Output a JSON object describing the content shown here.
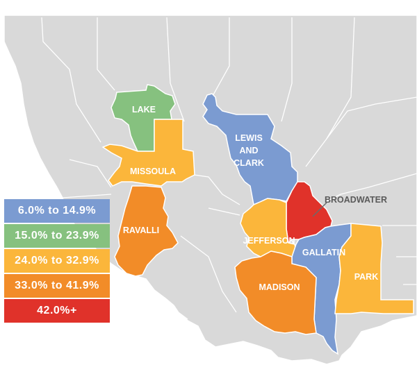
{
  "colors": {
    "background_land": "#d9d9d9",
    "border": "#ffffff",
    "range_1": "#7b9bd1",
    "range_2": "#86c17f",
    "range_3": "#fbb63b",
    "range_4": "#f28c28",
    "range_5": "#e0322a"
  },
  "legend": [
    {
      "label": "6.0% to 14.9%",
      "color": "#7b9bd1"
    },
    {
      "label": "15.0% to 23.9%",
      "color": "#86c17f"
    },
    {
      "label": "24.0% to 32.9%",
      "color": "#fbb63b"
    },
    {
      "label": "33.0% to 41.9%",
      "color": "#f28c28"
    },
    {
      "label": "42.0%+",
      "color": "#e0322a"
    }
  ],
  "counties": {
    "lake": {
      "label": "LAKE",
      "range": "15.0% to 23.9%"
    },
    "missoula": {
      "label": "MISSOULA",
      "range": "24.0% to 32.9%"
    },
    "ravalli": {
      "label": "RAVALLI",
      "range": "33.0% to 41.9%"
    },
    "lewis_and_clark": {
      "label_lines": [
        "LEWIS",
        "AND",
        "CLARK"
      ],
      "range": "6.0% to 14.9%"
    },
    "broadwater": {
      "label": "BROADWATER",
      "range": "42.0%+"
    },
    "jefferson": {
      "label": "JEFFERSON",
      "range": "24.0% to 32.9%"
    },
    "gallatin": {
      "label": "GALLATIN",
      "range": "6.0% to 14.9%"
    },
    "madison": {
      "label": "MADISON",
      "range": "33.0% to 41.9%"
    },
    "park": {
      "label": "PARK",
      "range": "24.0% to 32.9%"
    }
  }
}
